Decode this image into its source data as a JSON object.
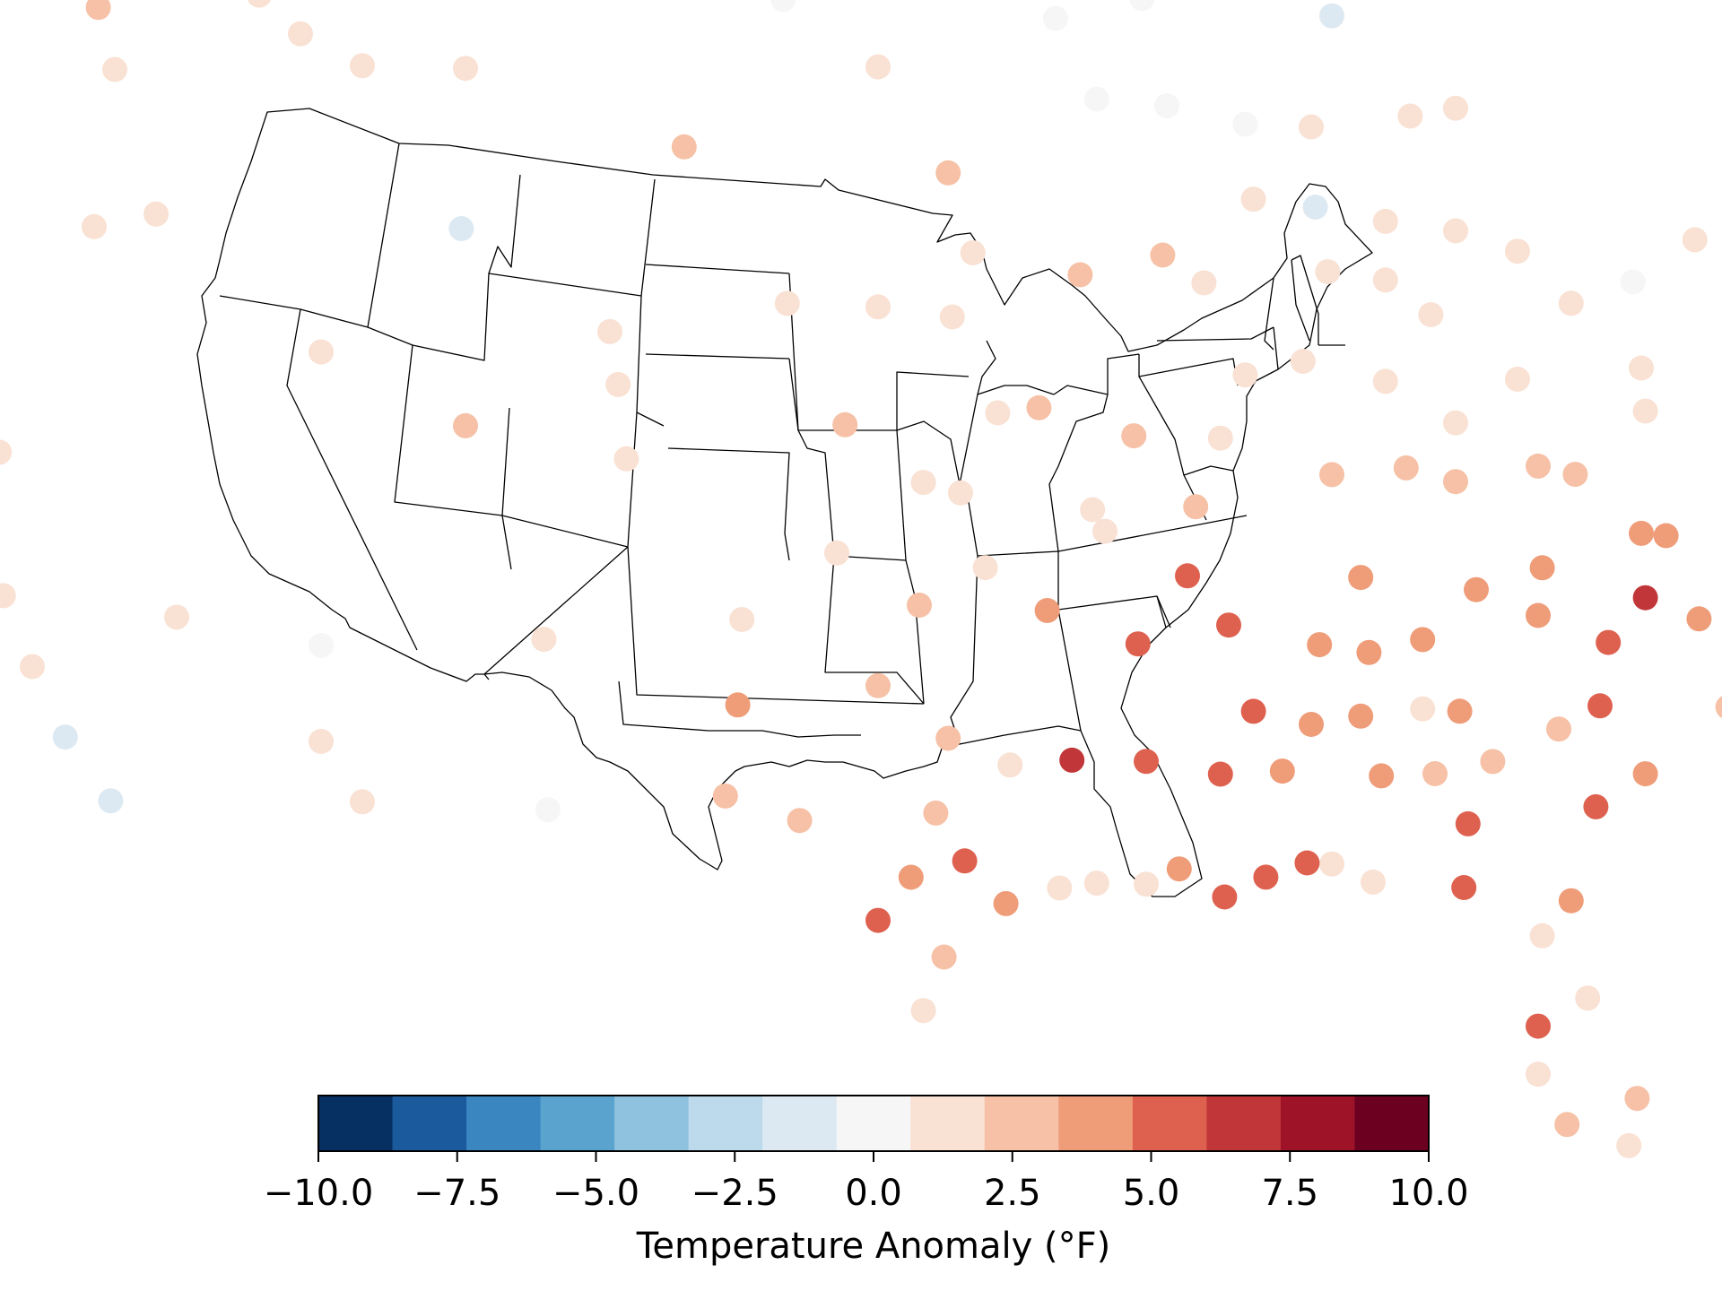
{
  "colorbar": {
    "label": "Temperature Anomaly (°F)",
    "ticks": [
      "−10.0",
      "−7.5",
      "−5.0",
      "−2.5",
      "0.0",
      "2.5",
      "5.0",
      "7.5",
      "10.0"
    ],
    "tick_values": [
      -10,
      -7.5,
      -5,
      -2.5,
      0,
      2.5,
      5,
      7.5,
      10
    ],
    "range": [
      -10,
      10
    ],
    "bin_colors": [
      "#053061",
      "#1b5a9c",
      "#3a86c0",
      "#5aa3ce",
      "#8fc2de",
      "#bcdaeb",
      "#dde9f2",
      "#f6f6f6",
      "#f9e1d3",
      "#f6c1a6",
      "#ef9c79",
      "#de6150",
      "#c13639",
      "#9e1328",
      "#6b0020"
    ]
  },
  "chart_data": {
    "type": "scatter",
    "title": "",
    "value_label": "Temperature Anomaly (°F)",
    "value_range": [
      -10,
      10
    ],
    "coordinate_system": "longitude/latitude",
    "points": [
      {
        "lon": -122.3,
        "lat": 47.5,
        "v": 1.2
      },
      {
        "lon": -123.0,
        "lat": 46.2,
        "v": 3.8
      },
      {
        "lon": -120.8,
        "lat": 46.8,
        "v": 1.0
      },
      {
        "lon": -117.4,
        "lat": 47.6,
        "v": 2.4
      },
      {
        "lon": -117.0,
        "lat": 46.4,
        "v": 1.5
      },
      {
        "lon": -122.9,
        "lat": 44.9,
        "v": 1.2
      },
      {
        "lon": -122.9,
        "lat": 42.4,
        "v": 2.4
      },
      {
        "lon": -117.5,
        "lat": 43.5,
        "v": 1.2
      },
      {
        "lon": -124.2,
        "lat": 40.8,
        "v": 0.0
      },
      {
        "lon": -122.3,
        "lat": 38.5,
        "v": 1.2
      },
      {
        "lon": -121.5,
        "lat": 38.5,
        "v": 0.0
      },
      {
        "lon": -122.3,
        "lat": 37.5,
        "v": 1.5
      },
      {
        "lon": -119.8,
        "lat": 39.5,
        "v": 1.6
      },
      {
        "lon": -119.7,
        "lat": 36.8,
        "v": 1.2
      },
      {
        "lon": -119.0,
        "lat": 35.4,
        "v": 1.0
      },
      {
        "lon": -121.0,
        "lat": 35.5,
        "v": 0.0
      },
      {
        "lon": -118.2,
        "lat": 34.0,
        "v": -2.0
      },
      {
        "lon": -117.1,
        "lat": 32.7,
        "v": -1.5
      },
      {
        "lon": -115.5,
        "lat": 36.0,
        "v": 1.2
      },
      {
        "lon": -113.5,
        "lat": 47.5,
        "v": 1.5
      },
      {
        "lon": -111.0,
        "lat": 46.0,
        "v": 1.2
      },
      {
        "lon": -108.5,
        "lat": 45.8,
        "v": 1.2
      },
      {
        "lon": -112.5,
        "lat": 46.7,
        "v": 1.5
      },
      {
        "lon": -106.5,
        "lat": 47.3,
        "v": 1.0
      },
      {
        "lon": -116.0,
        "lat": 43.6,
        "v": 1.2
      },
      {
        "lon": -108.6,
        "lat": 42.8,
        "v": -1.5
      },
      {
        "lon": -112.0,
        "lat": 40.7,
        "v": 1.5
      },
      {
        "lon": -105.0,
        "lat": 40.7,
        "v": 1.2
      },
      {
        "lon": -104.8,
        "lat": 39.7,
        "v": 1.2
      },
      {
        "lon": -104.6,
        "lat": 38.3,
        "v": 1.2
      },
      {
        "lon": -108.5,
        "lat": 39.1,
        "v": 2.4
      },
      {
        "lon": -112.0,
        "lat": 35.2,
        "v": 0.0
      },
      {
        "lon": -112.0,
        "lat": 33.4,
        "v": 1.2
      },
      {
        "lon": -111.0,
        "lat": 32.2,
        "v": 1.2
      },
      {
        "lon": -106.6,
        "lat": 35.0,
        "v": 1.2
      },
      {
        "lon": -106.5,
        "lat": 31.8,
        "v": 0.0
      },
      {
        "lon": -102.5,
        "lat": 47.8,
        "v": 1.2
      },
      {
        "lon": -100.8,
        "lat": 46.8,
        "v": 0.0
      },
      {
        "lon": -103.2,
        "lat": 44.1,
        "v": 3.0
      },
      {
        "lon": -98.5,
        "lat": 45.5,
        "v": 1.2
      },
      {
        "lon": -96.8,
        "lat": 43.5,
        "v": 2.5
      },
      {
        "lon": -96.2,
        "lat": 42.0,
        "v": 1.5
      },
      {
        "lon": -96.7,
        "lat": 40.8,
        "v": 1.5
      },
      {
        "lon": -98.5,
        "lat": 41.0,
        "v": 1.2
      },
      {
        "lon": -100.7,
        "lat": 41.1,
        "v": 1.2
      },
      {
        "lon": -97.4,
        "lat": 37.7,
        "v": 1.2
      },
      {
        "lon": -96.5,
        "lat": 37.5,
        "v": 1.2
      },
      {
        "lon": -99.3,
        "lat": 38.8,
        "v": 2.5
      },
      {
        "lon": -95.6,
        "lat": 39.0,
        "v": 1.2
      },
      {
        "lon": -94.6,
        "lat": 39.1,
        "v": 2.5
      },
      {
        "lon": -93.6,
        "lat": 41.6,
        "v": 2.4
      },
      {
        "lon": -91.6,
        "lat": 42.0,
        "v": 2.4
      },
      {
        "lon": -90.6,
        "lat": 41.5,
        "v": 1.5
      },
      {
        "lon": -93.2,
        "lat": 44.9,
        "v": 0.0
      },
      {
        "lon": -92.1,
        "lat": 46.8,
        "v": 0.0
      },
      {
        "lon": -94.2,
        "lat": 46.4,
        "v": 0.0
      },
      {
        "lon": -91.5,
        "lat": 44.8,
        "v": 0.0
      },
      {
        "lon": -89.6,
        "lat": 44.5,
        "v": 0.0
      },
      {
        "lon": -89.4,
        "lat": 43.1,
        "v": 1.2
      },
      {
        "lon": -87.9,
        "lat": 43.0,
        "v": -1.5
      },
      {
        "lon": -88.0,
        "lat": 44.5,
        "v": 1.2
      },
      {
        "lon": -87.6,
        "lat": 41.8,
        "v": 1.2
      },
      {
        "lon": -89.6,
        "lat": 39.8,
        "v": 1.2
      },
      {
        "lon": -90.2,
        "lat": 38.6,
        "v": 1.5
      },
      {
        "lon": -88.2,
        "lat": 40.1,
        "v": 1.2
      },
      {
        "lon": -92.3,
        "lat": 38.6,
        "v": 2.4
      },
      {
        "lon": -93.3,
        "lat": 37.2,
        "v": 1.5
      },
      {
        "lon": -90.8,
        "lat": 37.3,
        "v": 2.4
      },
      {
        "lon": -87.5,
        "lat": 46.6,
        "v": -1.5
      },
      {
        "lon": -85.6,
        "lat": 44.8,
        "v": 1.2
      },
      {
        "lon": -84.5,
        "lat": 45.0,
        "v": 1.2
      },
      {
        "lon": -86.2,
        "lat": 42.8,
        "v": 1.2
      },
      {
        "lon": -84.5,
        "lat": 42.7,
        "v": 1.2
      },
      {
        "lon": -83.0,
        "lat": 42.4,
        "v": 1.2
      },
      {
        "lon": -86.2,
        "lat": 41.7,
        "v": 1.2
      },
      {
        "lon": -85.1,
        "lat": 41.1,
        "v": 1.2
      },
      {
        "lon": -86.2,
        "lat": 39.8,
        "v": 1.2
      },
      {
        "lon": -87.5,
        "lat": 38.0,
        "v": 2.4
      },
      {
        "lon": -84.5,
        "lat": 39.1,
        "v": 1.2
      },
      {
        "lon": -83.0,
        "lat": 40.0,
        "v": 1.2
      },
      {
        "lon": -81.7,
        "lat": 41.5,
        "v": 1.2
      },
      {
        "lon": -80.2,
        "lat": 42.0,
        "v": 0.0
      },
      {
        "lon": -80.0,
        "lat": 40.4,
        "v": 1.5
      },
      {
        "lon": -85.7,
        "lat": 38.2,
        "v": 2.4
      },
      {
        "lon": -84.5,
        "lat": 38.0,
        "v": 2.4
      },
      {
        "lon": -82.5,
        "lat": 38.4,
        "v": 2.4
      },
      {
        "lon": -81.6,
        "lat": 38.3,
        "v": 2.4
      },
      {
        "lon": -79.9,
        "lat": 39.6,
        "v": 1.5
      },
      {
        "lon": -78.7,
        "lat": 42.9,
        "v": 1.2
      },
      {
        "lon": -77.6,
        "lat": 43.2,
        "v": 1.2
      },
      {
        "lon": -76.1,
        "lat": 43.0,
        "v": 2.4
      },
      {
        "lon": -73.8,
        "lat": 42.7,
        "v": 1.2
      },
      {
        "lon": -75.9,
        "lat": 42.1,
        "v": 2.5
      },
      {
        "lon": -76.9,
        "lat": 40.3,
        "v": 1.2
      },
      {
        "lon": -75.2,
        "lat": 39.9,
        "v": 2.5
      },
      {
        "lon": -74.2,
        "lat": 40.7,
        "v": 2.4
      },
      {
        "lon": -73.8,
        "lat": 40.8,
        "v": 2.4
      },
      {
        "lon": -72.7,
        "lat": 41.8,
        "v": 1.5
      },
      {
        "lon": -71.4,
        "lat": 41.8,
        "v": 2.5
      },
      {
        "lon": -71.0,
        "lat": 42.4,
        "v": 2.4
      },
      {
        "lon": -72.6,
        "lat": 42.1,
        "v": 1.5
      },
      {
        "lon": -72.6,
        "lat": 44.5,
        "v": 1.2
      },
      {
        "lon": -71.5,
        "lat": 43.2,
        "v": 1.2
      },
      {
        "lon": -70.3,
        "lat": 43.7,
        "v": 0.0
      },
      {
        "lon": -68.8,
        "lat": 44.8,
        "v": 1.2
      },
      {
        "lon": -68.0,
        "lat": 46.8,
        "v": 0.0
      },
      {
        "lon": -77.0,
        "lat": 38.9,
        "v": 4.0
      },
      {
        "lon": -76.6,
        "lat": 39.3,
        "v": 2.4
      },
      {
        "lon": -75.5,
        "lat": 38.4,
        "v": 1.2
      },
      {
        "lon": -77.4,
        "lat": 37.5,
        "v": 1.5
      },
      {
        "lon": -76.3,
        "lat": 36.9,
        "v": 3.8
      },
      {
        "lon": -79.4,
        "lat": 37.3,
        "v": 3.8
      },
      {
        "lon": -80.0,
        "lat": 37.3,
        "v": 3.8
      },
      {
        "lon": -78.6,
        "lat": 35.8,
        "v": 3.8
      },
      {
        "lon": -80.8,
        "lat": 35.2,
        "v": 5.2
      },
      {
        "lon": -79.9,
        "lat": 36.1,
        "v": 6.8
      },
      {
        "lon": -82.5,
        "lat": 35.6,
        "v": 3.8
      },
      {
        "lon": -77.9,
        "lat": 34.2,
        "v": 2.4
      },
      {
        "lon": -81.0,
        "lat": 34.0,
        "v": 5.0
      },
      {
        "lon": -79.9,
        "lat": 32.8,
        "v": 3.8
      },
      {
        "lon": -81.1,
        "lat": 32.1,
        "v": 5.0
      },
      {
        "lon": -84.4,
        "lat": 33.7,
        "v": 3.8
      },
      {
        "lon": -83.6,
        "lat": 32.8,
        "v": 2.4
      },
      {
        "lon": -82.0,
        "lat": 33.5,
        "v": 2.4
      },
      {
        "lon": -84.2,
        "lat": 31.6,
        "v": 5.0
      },
      {
        "lon": -81.7,
        "lat": 30.3,
        "v": 3.8
      },
      {
        "lon": -82.4,
        "lat": 29.6,
        "v": 1.2
      },
      {
        "lon": -81.3,
        "lat": 28.5,
        "v": 1.5
      },
      {
        "lon": -82.5,
        "lat": 27.9,
        "v": 5.0
      },
      {
        "lon": -82.5,
        "lat": 27.0,
        "v": 1.5
      },
      {
        "lon": -81.8,
        "lat": 26.1,
        "v": 2.4
      },
      {
        "lon": -80.1,
        "lat": 26.7,
        "v": 2.4
      },
      {
        "lon": -80.3,
        "lat": 25.8,
        "v": 1.2
      },
      {
        "lon": -84.3,
        "lat": 30.4,
        "v": 5.0
      },
      {
        "lon": -86.5,
        "lat": 30.4,
        "v": 1.5
      },
      {
        "lon": -87.5,
        "lat": 30.7,
        "v": 1.5
      },
      {
        "lon": -88.1,
        "lat": 30.7,
        "v": 5.0
      },
      {
        "lon": -89.1,
        "lat": 30.4,
        "v": 5.0
      },
      {
        "lon": -86.8,
        "lat": 33.5,
        "v": 3.8
      },
      {
        "lon": -86.3,
        "lat": 32.4,
        "v": 3.8
      },
      {
        "lon": -85.0,
        "lat": 32.5,
        "v": 2.4
      },
      {
        "lon": -85.3,
        "lat": 33.7,
        "v": 1.5
      },
      {
        "lon": -86.6,
        "lat": 34.7,
        "v": 3.8
      },
      {
        "lon": -87.8,
        "lat": 34.8,
        "v": 3.8
      },
      {
        "lon": -88.0,
        "lat": 33.3,
        "v": 3.8
      },
      {
        "lon": -86.8,
        "lat": 36.1,
        "v": 3.8
      },
      {
        "lon": -85.3,
        "lat": 35.0,
        "v": 3.8
      },
      {
        "lon": -84.0,
        "lat": 36.0,
        "v": 3.8
      },
      {
        "lon": -82.4,
        "lat": 36.5,
        "v": 3.8
      },
      {
        "lon": -90.0,
        "lat": 35.1,
        "v": 5.0
      },
      {
        "lon": -90.2,
        "lat": 32.3,
        "v": 5.0
      },
      {
        "lon": -89.4,
        "lat": 33.5,
        "v": 5.0
      },
      {
        "lon": -88.7,
        "lat": 32.4,
        "v": 3.8
      },
      {
        "lon": -90.1,
        "lat": 30.0,
        "v": 5.0
      },
      {
        "lon": -91.2,
        "lat": 30.5,
        "v": 3.8
      },
      {
        "lon": -92.0,
        "lat": 30.2,
        "v": 1.5
      },
      {
        "lon": -93.2,
        "lat": 30.2,
        "v": 1.5
      },
      {
        "lon": -93.8,
        "lat": 32.5,
        "v": 6.5
      },
      {
        "lon": -92.0,
        "lat": 32.5,
        "v": 5.0
      },
      {
        "lon": -92.2,
        "lat": 34.7,
        "v": 5.2
      },
      {
        "lon": -94.4,
        "lat": 35.3,
        "v": 3.8
      },
      {
        "lon": -91.0,
        "lat": 36.0,
        "v": 5.0
      },
      {
        "lon": -93.0,
        "lat": 36.8,
        "v": 1.2
      },
      {
        "lon": -95.9,
        "lat": 36.1,
        "v": 1.2
      },
      {
        "lon": -97.5,
        "lat": 35.4,
        "v": 2.4
      },
      {
        "lon": -99.5,
        "lat": 36.4,
        "v": 1.2
      },
      {
        "lon": -101.8,
        "lat": 35.2,
        "v": 1.2
      },
      {
        "lon": -101.9,
        "lat": 33.6,
        "v": 3.8
      },
      {
        "lon": -98.5,
        "lat": 33.9,
        "v": 2.4
      },
      {
        "lon": -96.8,
        "lat": 32.9,
        "v": 2.4
      },
      {
        "lon": -95.3,
        "lat": 32.4,
        "v": 1.5
      },
      {
        "lon": -97.1,
        "lat": 31.5,
        "v": 2.4
      },
      {
        "lon": -100.4,
        "lat": 31.4,
        "v": 2.4
      },
      {
        "lon": -102.2,
        "lat": 31.9,
        "v": 2.4
      },
      {
        "lon": -97.7,
        "lat": 30.3,
        "v": 3.8
      },
      {
        "lon": -96.4,
        "lat": 30.6,
        "v": 5.0
      },
      {
        "lon": -98.5,
        "lat": 29.5,
        "v": 5.2
      },
      {
        "lon": -95.4,
        "lat": 29.8,
        "v": 3.8
      },
      {
        "lon": -94.1,
        "lat": 30.1,
        "v": 1.5
      },
      {
        "lon": -97.4,
        "lat": 27.8,
        "v": 1.2
      },
      {
        "lon": -97.5,
        "lat": 25.9,
        "v": 1.2
      },
      {
        "lon": -96.9,
        "lat": 28.8,
        "v": 2.4
      }
    ]
  }
}
